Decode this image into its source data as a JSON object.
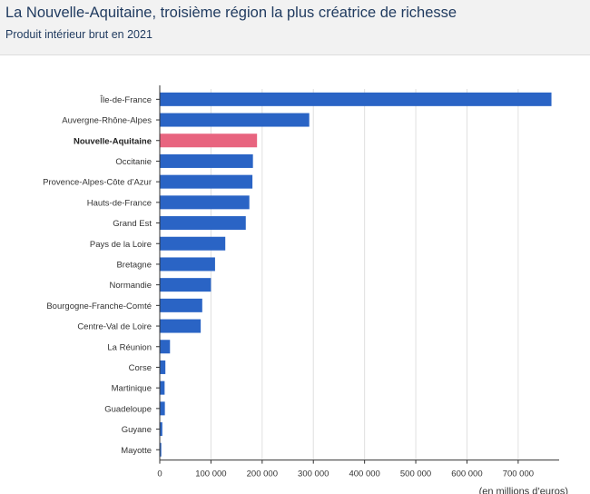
{
  "header": {
    "title": "La Nouvelle-Aquitaine, troisième région la plus créatrice de richesse",
    "subtitle": "Produit intérieur brut en 2021"
  },
  "colors": {
    "bar": "#2a64c5",
    "highlight": "#e8647f",
    "grid": "#e0e0e0",
    "axis": "#333333"
  },
  "chart_data": {
    "type": "bar",
    "orientation": "horizontal",
    "title": "La Nouvelle-Aquitaine, troisième région la plus créatrice de richesse",
    "subtitle": "Produit intérieur brut en 2021",
    "xlabel": "(en millions d’euros)",
    "ylabel": "",
    "xlim": [
      0,
      780000
    ],
    "grid": true,
    "highlight": "Nouvelle-Aquitaine",
    "xticks": [
      0,
      100000,
      200000,
      300000,
      400000,
      500000,
      600000,
      700000
    ],
    "xtick_labels": [
      "0",
      "100 000",
      "200 000",
      "300 000",
      "400 000",
      "500 000",
      "600 000",
      "700 000"
    ],
    "categories": [
      "Île-de-France",
      "Auvergne-Rhône-Alpes",
      "Nouvelle-Aquitaine",
      "Occitanie",
      "Provence-Alpes-Côte d’Azur",
      "Hauts-de-France",
      "Grand Est",
      "Pays de la Loire",
      "Bretagne",
      "Normandie",
      "Bourgogne-Franche-Comté",
      "Centre-Val de Loire",
      "La Réunion",
      "Corse",
      "Martinique",
      "Guadeloupe",
      "Guyane",
      "Mayotte"
    ],
    "values": [
      765000,
      292000,
      190000,
      182000,
      181000,
      175000,
      168000,
      128000,
      108000,
      100000,
      83000,
      80000,
      20000,
      11000,
      9500,
      10000,
      5000,
      3000
    ]
  }
}
